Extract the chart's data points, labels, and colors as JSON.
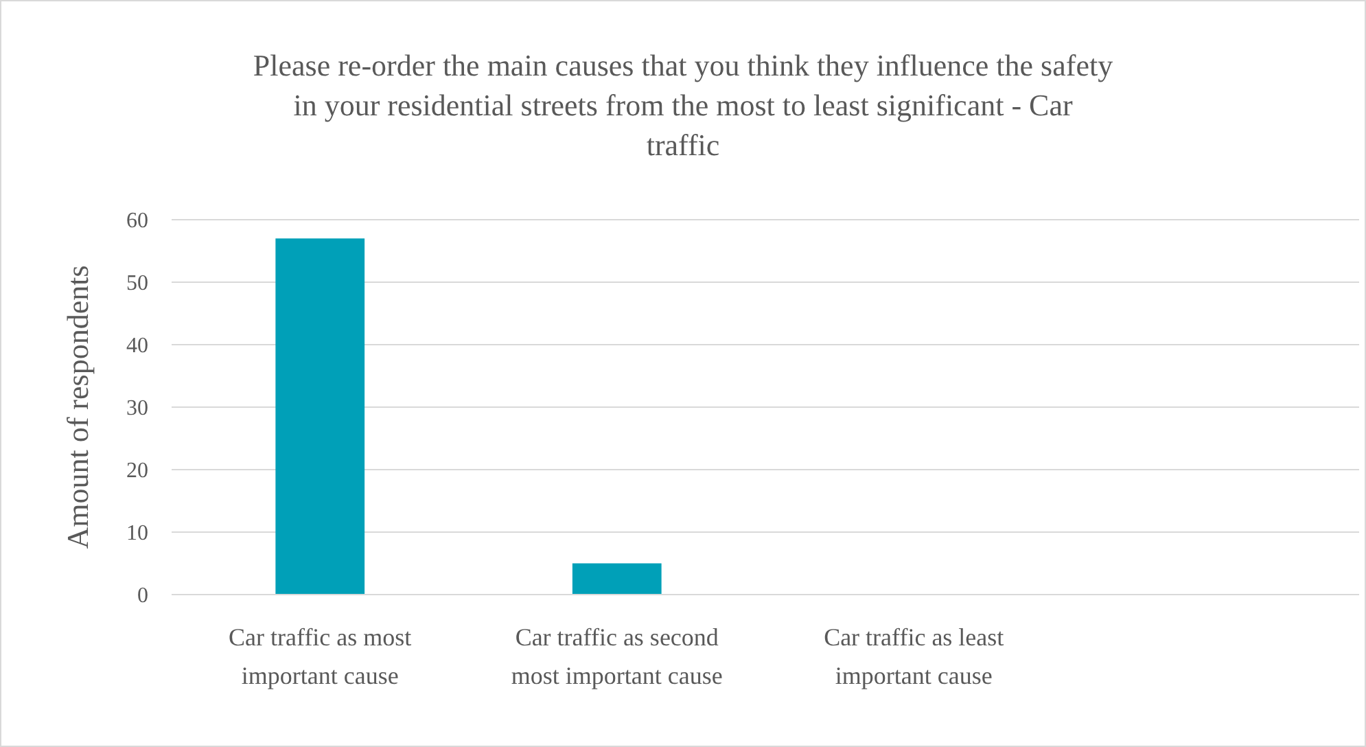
{
  "chart_data": {
    "type": "bar",
    "title": "Please re-order the main causes that you think they influence the safety in your residential streets from the most to least significant - Car traffic",
    "categories": [
      "Car traffic as most important cause",
      "Car traffic as second most important cause",
      "Car traffic as least important cause",
      null
    ],
    "values": [
      57,
      5,
      0,
      null
    ],
    "color": "#00a0b8",
    "ylabel": "Amount of respondents",
    "ylim": [
      0,
      60
    ],
    "yticks": [
      0,
      10,
      20,
      30,
      40,
      50,
      60
    ],
    "grid": "y"
  }
}
